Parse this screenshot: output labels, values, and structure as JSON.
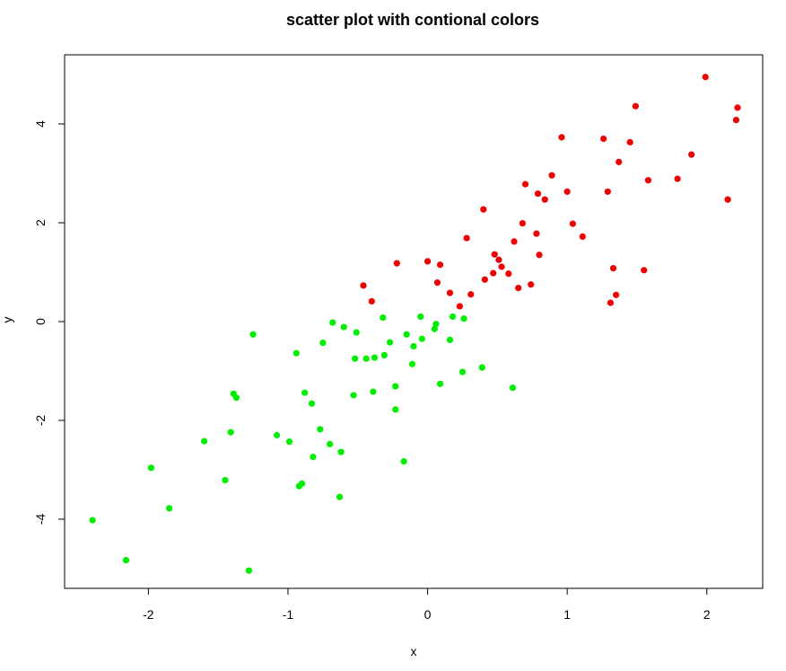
{
  "chart_data": {
    "type": "scatter",
    "title": "scatter plot with contional colors",
    "xlabel": "x",
    "ylabel": "y",
    "xlim": [
      -2.6,
      2.4
    ],
    "ylim": [
      -5.4,
      5.4
    ],
    "x_ticks": [
      -2,
      -1,
      0,
      1,
      2
    ],
    "y_ticks": [
      -4,
      -2,
      0,
      2,
      4
    ],
    "x_tick_labels": [
      "-2",
      "-1",
      "0",
      "1",
      "2"
    ],
    "y_tick_labels": [
      "-4",
      "-2",
      "0",
      "2",
      "4"
    ],
    "grid": false,
    "legend": "none",
    "series": [
      {
        "color": "#00ee00",
        "points": [
          [
            -2.4,
            -4.02
          ],
          [
            -2.16,
            -4.83
          ],
          [
            -1.98,
            -2.96
          ],
          [
            -1.85,
            -3.78
          ],
          [
            -1.6,
            -2.42
          ],
          [
            -1.45,
            -3.21
          ],
          [
            -1.41,
            -2.24
          ],
          [
            -1.39,
            -1.46
          ],
          [
            -1.37,
            -1.54
          ],
          [
            -1.28,
            -5.04
          ],
          [
            -1.25,
            -0.26
          ],
          [
            -1.08,
            -2.3
          ],
          [
            -0.99,
            -2.43
          ],
          [
            -0.94,
            -0.64
          ],
          [
            -0.92,
            -3.33
          ],
          [
            -0.9,
            -3.28
          ],
          [
            -0.88,
            -1.44
          ],
          [
            -0.83,
            -1.66
          ],
          [
            -0.82,
            -2.74
          ],
          [
            -0.77,
            -2.18
          ],
          [
            -0.75,
            -0.43
          ],
          [
            -0.7,
            -2.48
          ],
          [
            -0.68,
            -0.02
          ],
          [
            -0.63,
            -3.55
          ],
          [
            -0.62,
            -2.64
          ],
          [
            -0.6,
            -0.11
          ],
          [
            -0.53,
            -1.49
          ],
          [
            -0.52,
            -0.75
          ],
          [
            -0.51,
            -0.22
          ],
          [
            -0.44,
            -0.75
          ],
          [
            -0.39,
            -1.42
          ],
          [
            -0.38,
            -0.73
          ],
          [
            -0.32,
            0.08
          ],
          [
            -0.31,
            -0.68
          ],
          [
            -0.27,
            -0.42
          ],
          [
            -0.23,
            -1.31
          ],
          [
            -0.23,
            -1.78
          ],
          [
            -0.17,
            -2.83
          ],
          [
            -0.15,
            -0.26
          ],
          [
            -0.11,
            -0.86
          ],
          [
            -0.1,
            -0.5
          ],
          [
            -0.05,
            0.1
          ],
          [
            -0.04,
            -0.35
          ],
          [
            0.05,
            -0.15
          ],
          [
            0.06,
            -0.05
          ],
          [
            0.09,
            -1.26
          ],
          [
            0.16,
            -0.37
          ],
          [
            0.18,
            0.1
          ],
          [
            0.25,
            -1.02
          ],
          [
            0.26,
            0.06
          ],
          [
            0.39,
            -0.93
          ],
          [
            0.61,
            -1.34
          ]
        ]
      },
      {
        "color": "#ee0000",
        "points": [
          [
            -0.46,
            0.73
          ],
          [
            -0.4,
            0.41
          ],
          [
            -0.22,
            1.18
          ],
          [
            0.0,
            1.22
          ],
          [
            0.07,
            0.79
          ],
          [
            0.09,
            1.15
          ],
          [
            0.16,
            0.58
          ],
          [
            0.23,
            0.31
          ],
          [
            0.28,
            1.69
          ],
          [
            0.31,
            0.55
          ],
          [
            0.4,
            2.27
          ],
          [
            0.41,
            0.85
          ],
          [
            0.47,
            0.98
          ],
          [
            0.48,
            1.36
          ],
          [
            0.51,
            1.25
          ],
          [
            0.53,
            1.11
          ],
          [
            0.58,
            0.97
          ],
          [
            0.62,
            1.62
          ],
          [
            0.65,
            0.68
          ],
          [
            0.68,
            1.99
          ],
          [
            0.7,
            2.78
          ],
          [
            0.74,
            0.75
          ],
          [
            0.78,
            1.78
          ],
          [
            0.79,
            2.59
          ],
          [
            0.8,
            1.35
          ],
          [
            0.84,
            2.47
          ],
          [
            0.89,
            2.96
          ],
          [
            0.96,
            3.73
          ],
          [
            1.0,
            2.63
          ],
          [
            1.04,
            1.98
          ],
          [
            1.11,
            1.72
          ],
          [
            1.26,
            3.7
          ],
          [
            1.29,
            2.63
          ],
          [
            1.31,
            0.38
          ],
          [
            1.33,
            1.08
          ],
          [
            1.35,
            0.54
          ],
          [
            1.37,
            3.23
          ],
          [
            1.45,
            3.63
          ],
          [
            1.49,
            4.36
          ],
          [
            1.55,
            1.04
          ],
          [
            1.58,
            2.86
          ],
          [
            1.79,
            2.89
          ],
          [
            1.89,
            3.38
          ],
          [
            1.99,
            4.95
          ],
          [
            2.15,
            2.47
          ],
          [
            2.21,
            4.08
          ],
          [
            2.22,
            4.33
          ]
        ]
      }
    ]
  }
}
